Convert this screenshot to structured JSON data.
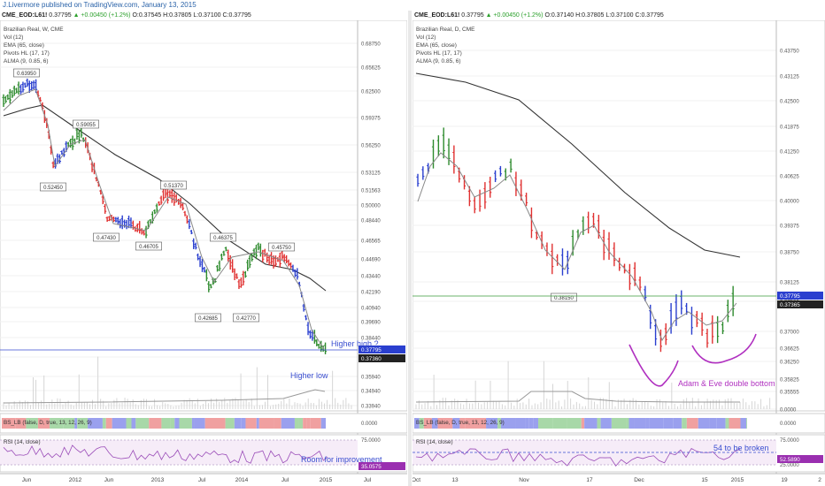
{
  "header": {
    "text": "J.Livermore published on TradingView.com, January 13, 2015"
  },
  "left": {
    "ticker": {
      "symbol": "CME_EOD:L61!",
      "last": "0.37795",
      "change": "▲ +0.00450 (+1.2%)",
      "open": "O:0.37545",
      "high": "H:0.37805",
      "low": "L:0.37100",
      "close": "C:0.37795"
    },
    "legend": [
      "Brazilian Real, W, CME",
      "Vol (12)",
      "EMA (65, close)",
      "Pivots HL (17, 17)",
      "ALMA (9, 0.85, 6)"
    ],
    "price_axis": [
      "0.68750",
      "0.65625",
      "0.62500",
      "0.59375",
      "0.56250",
      "0.53125",
      "0.51563",
      "0.50000",
      "0.48440",
      "0.46565",
      "0.44690",
      "0.43440",
      "0.42190",
      "0.40940",
      "0.39690",
      "0.38440",
      "0.36565",
      "0.35940",
      "0.34940",
      "0.33940"
    ],
    "last_tag": "0.37795",
    "ema_tag": "0.37360",
    "pivots": [
      "0.63950",
      "0.59055",
      "0.52450",
      "0.47430",
      "0.46705",
      "0.51370",
      "0.46375",
      "0.45750",
      "0.42685",
      "0.42770"
    ],
    "annotations": {
      "higher_high": "Higher high ?",
      "higher_low": "Higher low",
      "rsi_note": "Room for improvement"
    },
    "bs_label": "BS_LB (false, D, true, 13, 12, 26, 9)",
    "bs_axis": "0.0000",
    "rsi_label": "RSI (14, close)",
    "rsi_axis": [
      "75.0000",
      "25.0000"
    ],
    "rsi_tag": "35.0575",
    "time_axis": [
      "Jun",
      "2012",
      "Jun",
      "2013",
      "Jul",
      "2014",
      "Jul",
      "2015",
      "Jul"
    ]
  },
  "right": {
    "ticker": {
      "symbol": "CME_EOD:L61!",
      "last": "0.37795",
      "change": "▲ +0.00450 (+1.2%)",
      "open": "O:0.37140",
      "high": "H:0.37805",
      "low": "L:0.37100",
      "close": "C:0.37795"
    },
    "legend": [
      "Brazilian Real, D, CME",
      "Vol (12)",
      "EMA (65, close)",
      "Pivots HL (17, 17)",
      "ALMA (9, 0.85, 6)"
    ],
    "price_axis": [
      "0.43750",
      "0.43125",
      "0.42500",
      "0.41875",
      "0.41250",
      "0.40625",
      "0.40000",
      "0.39375",
      "0.38750",
      "0.38125",
      "0.37500",
      "0.37000",
      "0.36625",
      "0.36250",
      "0.35825",
      "0.35555",
      "0.0000"
    ],
    "last_tag": "0.37795",
    "ema_tag": "0.37365",
    "pivots": [
      "0.38150"
    ],
    "annotations": {
      "adam_eve": "Adam & Eve double bottom",
      "rsi_note": "54 to be broken"
    },
    "bs_label": "BS_LB (false, D, true, 13, 12, 26, 9)",
    "bs_axis": "0.0000",
    "rsi_label": "RSI (14, close)",
    "rsi_axis": [
      "75.0000",
      "25.0000"
    ],
    "rsi_tag": "52.5890",
    "time_axis": [
      "Oct",
      "13",
      "Nov",
      "17",
      "Dec",
      "15",
      "2015",
      "19",
      "2"
    ]
  },
  "colors": {
    "bull": "#2e8b2e",
    "bear": "#e03030",
    "neutral": "#2a3fcf",
    "ema": "#333333",
    "alma": "#888888",
    "annot_blue": "#3a4ed0",
    "annot_purple": "#b030c0",
    "green_line": "#3a9a3a"
  }
}
